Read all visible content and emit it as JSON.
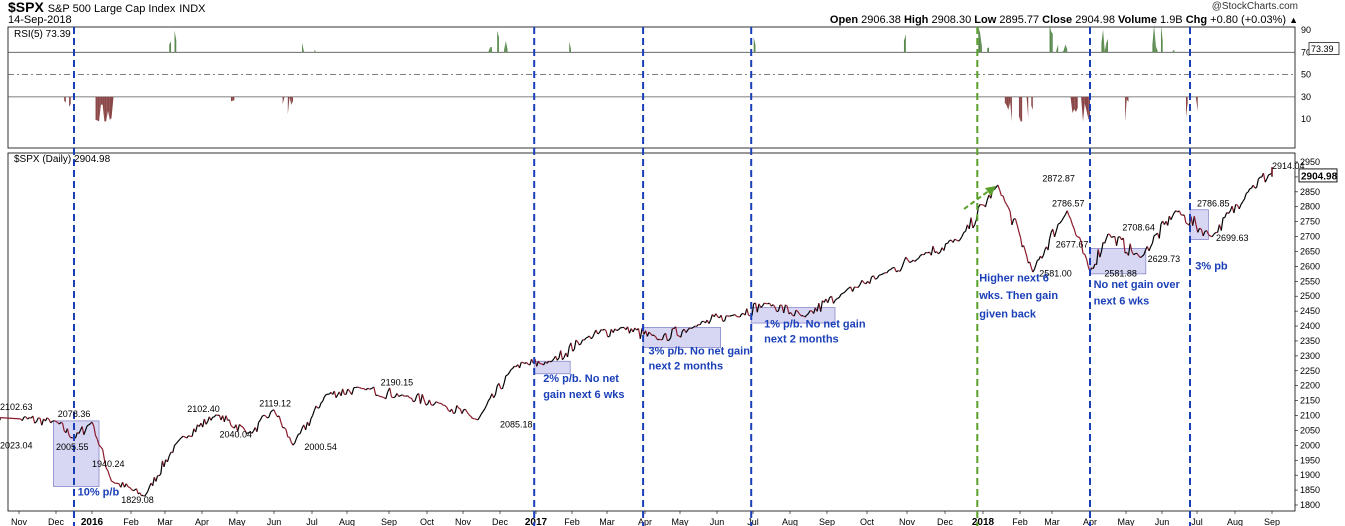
{
  "header": {
    "symbol": "$SPX",
    "name": "S&P 500 Large Cap Index",
    "exchange": "INDX",
    "date": "14-Sep-2018",
    "watermark": "@StockCharts.com",
    "open_label": "Open",
    "open": "2906.38",
    "high_label": "High",
    "high": "2908.30",
    "low_label": "Low",
    "low": "2895.77",
    "close_label": "Close",
    "close": "2904.98",
    "volume_label": "Volume",
    "volume": "1.9B",
    "chg_label": "Chg",
    "chg": "+0.80 (+0.03%)"
  },
  "colors": {
    "price_line": "#000000",
    "price_down": "#8b1a2b",
    "rsi_overbought_fill": "#5a8a4f",
    "rsi_oversold_fill": "#8a4646",
    "box_fill": "#c9c9f0",
    "box_stroke": "#8888cc",
    "vline_blue": "#1a3fb8",
    "vline_green": "#5aa02c",
    "annotation_blue": "#1a3fb8",
    "last_value_box": "#ffffff"
  },
  "chart_data": [
    {
      "type": "line",
      "title": "RSI(5) 73.39",
      "indicator": "RSI(5)",
      "last_value": "73.39",
      "ylim": [
        0,
        100
      ],
      "yticks": [
        "90",
        "70",
        "50",
        "30",
        "10"
      ],
      "reference_lines": [
        70,
        50,
        30
      ],
      "grid": false
    },
    {
      "type": "line",
      "title": "$SPX (Daily) 2904.98",
      "last_value": "2904.98",
      "ylim": [
        1775,
        2975
      ],
      "yticks": [
        "2950",
        "2900",
        "2850",
        "2800",
        "2750",
        "2700",
        "2650",
        "2600",
        "2550",
        "2500",
        "2450",
        "2400",
        "2350",
        "2300",
        "2250",
        "2200",
        "2150",
        "2100",
        "2050",
        "2000",
        "1950",
        "1900",
        "1850",
        "1800"
      ],
      "xticks": [
        "Nov",
        "Dec",
        "2016",
        "Feb",
        "Mar",
        "Apr",
        "May",
        "Jun",
        "Jul",
        "Aug",
        "Sep",
        "Oct",
        "Nov",
        "Dec",
        "2017",
        "Feb",
        "Mar",
        "Apr",
        "May",
        "Jun",
        "Jul",
        "Aug",
        "Sep",
        "Oct",
        "Nov",
        "Dec",
        "2018",
        "Feb",
        "Mar",
        "Apr",
        "May",
        "Jun",
        "Jul",
        "Aug",
        "Sep"
      ],
      "bold_xticks": [
        "2016",
        "2017",
        "2018"
      ],
      "series": [
        {
          "values_by_month": [
            [
              "Nov 2015",
              2090
            ],
            [
              "Dec 2015",
              2080
            ],
            [
              "Dec 2015",
              2023.04
            ],
            [
              "Jan 2016",
              2078.36
            ],
            [
              "Jan 2016",
              1880
            ],
            [
              "Feb 2016",
              1829.08
            ],
            [
              "Mar 2016",
              2020
            ],
            [
              "Apr 2016",
              2102.4
            ],
            [
              "May 2016",
              2040.04
            ],
            [
              "Jun 2016",
              2119.12
            ],
            [
              "Jun 2016",
              2000.54
            ],
            [
              "Jul 2016",
              2170
            ],
            [
              "Aug 2016",
              2190.15
            ],
            [
              "Sep 2016",
              2165
            ],
            [
              "Oct 2016",
              2140
            ],
            [
              "Nov 2016",
              2085.18
            ],
            [
              "Dec 2016",
              2265
            ],
            [
              "Jan 2017",
              2280
            ],
            [
              "Feb 2017",
              2360
            ],
            [
              "Mar 2017",
              2395
            ],
            [
              "Apr 2017",
              2355
            ],
            [
              "May 2017",
              2400
            ],
            [
              "Jun 2017",
              2435
            ],
            [
              "Jul 2017",
              2475
            ],
            [
              "Aug 2017",
              2430
            ],
            [
              "Sep 2017",
              2510
            ],
            [
              "Oct 2017",
              2575
            ],
            [
              "Nov 2017",
              2640
            ],
            [
              "Dec 2017",
              2690
            ],
            [
              "Jan 2018",
              2872.87
            ],
            [
              "Feb 2018",
              2581.0
            ],
            [
              "Mar 2018",
              2786.57
            ],
            [
              "Apr 2018",
              2581.88
            ],
            [
              "Apr 2018",
              2708.64
            ],
            [
              "May 2018",
              2629.73
            ],
            [
              "Jun 2018",
              2786.85
            ],
            [
              "Jul 2018",
              2699.63
            ],
            [
              "Aug 2018",
              2860
            ],
            [
              "Sep 2018",
              2914.04
            ],
            [
              "Sep 2018",
              2904.98
            ]
          ]
        }
      ],
      "price_labels": [
        "2102.63",
        "2023.04",
        "2078.36",
        "2005.55",
        "1940.24",
        "1829.08",
        "2102.40",
        "2040.04",
        "2119.12",
        "2000.54",
        "2190.15",
        "2085.18",
        "2872.87",
        "2786.57",
        "2677.67",
        "2581.00",
        "2708.64",
        "2581.88",
        "2629.73",
        "2786.85",
        "2699.63",
        "2914.04"
      ],
      "annotations": [
        "10% p/b",
        "2% p/b. No net gain next 6 wks",
        "3% p/b. No net gain next 2 months",
        "1% p/b. No net gain next 2 months",
        "Higher next 6 wks. Then gain given back",
        "No net gain over next 6 wks",
        "3% pb"
      ]
    }
  ]
}
